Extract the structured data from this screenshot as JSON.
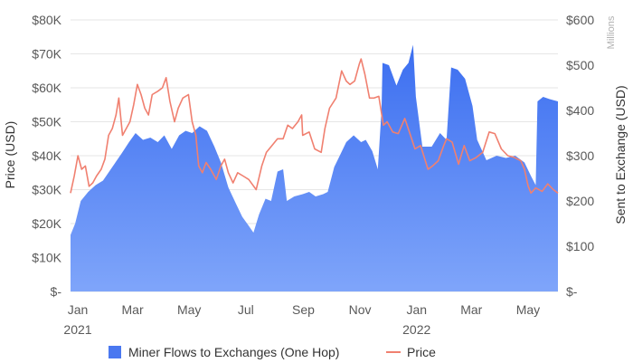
{
  "chart_data": {
    "type": "area",
    "title": "",
    "left_axis": {
      "label": "Price (USD)",
      "ticks": [
        "$-",
        "$10K",
        "$20K",
        "$30K",
        "$40K",
        "$50K",
        "$60K",
        "$70K",
        "$80K"
      ],
      "ylim": [
        0,
        80000
      ]
    },
    "right_axis": {
      "label": "Sent to Exchange (USD)",
      "unit": "Millions",
      "ticks": [
        "$-",
        "$100",
        "$200",
        "$300",
        "$400",
        "$500",
        "$600"
      ],
      "ylim": [
        0,
        600
      ]
    },
    "x_axis": {
      "ticks": [
        "Jan",
        "Mar",
        "May",
        "Jul",
        "Sep",
        "Nov",
        "Jan",
        "Mar",
        "May"
      ],
      "year_labels": [
        "2021",
        "2022"
      ],
      "range": [
        "2021-01-01",
        "2022-06-10"
      ]
    },
    "grid": true,
    "legend": {
      "position": "bottom"
    },
    "colors": {
      "area_top": "#3b6ef0",
      "area_bottom": "#7fa5fa",
      "price_line": "#f08070",
      "legend_area": "#4a78f0"
    },
    "series": [
      {
        "name": "Miner Flows to Exchanges (One Hop)",
        "axis": "right",
        "points": [
          [
            "2021-01-01",
            125
          ],
          [
            "2021-01-06",
            150
          ],
          [
            "2021-01-12",
            200
          ],
          [
            "2021-01-20",
            220
          ],
          [
            "2021-01-28",
            235
          ],
          [
            "2021-02-05",
            245
          ],
          [
            "2021-02-15",
            275
          ],
          [
            "2021-02-25",
            305
          ],
          [
            "2021-03-05",
            330
          ],
          [
            "2021-03-12",
            350
          ],
          [
            "2021-03-20",
            335
          ],
          [
            "2021-03-28",
            340
          ],
          [
            "2021-04-05",
            330
          ],
          [
            "2021-04-12",
            345
          ],
          [
            "2021-04-20",
            315
          ],
          [
            "2021-04-28",
            345
          ],
          [
            "2021-05-05",
            355
          ],
          [
            "2021-05-12",
            350
          ],
          [
            "2021-05-20",
            365
          ],
          [
            "2021-05-28",
            355
          ],
          [
            "2021-06-05",
            320
          ],
          [
            "2021-06-12",
            285
          ],
          [
            "2021-06-20",
            230
          ],
          [
            "2021-06-28",
            195
          ],
          [
            "2021-07-05",
            165
          ],
          [
            "2021-07-12",
            145
          ],
          [
            "2021-07-17",
            130
          ],
          [
            "2021-07-23",
            170
          ],
          [
            "2021-07-30",
            205
          ],
          [
            "2021-08-05",
            200
          ],
          [
            "2021-08-12",
            265
          ],
          [
            "2021-08-18",
            270
          ],
          [
            "2021-08-22",
            200
          ],
          [
            "2021-08-30",
            210
          ],
          [
            "2021-09-08",
            215
          ],
          [
            "2021-09-15",
            220
          ],
          [
            "2021-09-22",
            210
          ],
          [
            "2021-09-30",
            215
          ],
          [
            "2021-10-05",
            220
          ],
          [
            "2021-10-12",
            275
          ],
          [
            "2021-10-18",
            300
          ],
          [
            "2021-10-25",
            330
          ],
          [
            "2021-11-02",
            345
          ],
          [
            "2021-11-10",
            330
          ],
          [
            "2021-11-15",
            335
          ],
          [
            "2021-11-22",
            310
          ],
          [
            "2021-11-28",
            270
          ],
          [
            "2021-12-02",
            400
          ],
          [
            "2021-12-03",
            505
          ],
          [
            "2021-12-10",
            500
          ],
          [
            "2021-12-18",
            455
          ],
          [
            "2021-12-25",
            490
          ],
          [
            "2021-12-31",
            505
          ],
          [
            "2022-01-05",
            545
          ],
          [
            "2022-01-08",
            430
          ],
          [
            "2022-01-15",
            320
          ],
          [
            "2022-01-25",
            320
          ],
          [
            "2022-02-03",
            350
          ],
          [
            "2022-02-10",
            335
          ],
          [
            "2022-02-15",
            495
          ],
          [
            "2022-02-22",
            490
          ],
          [
            "2022-03-02",
            470
          ],
          [
            "2022-03-10",
            410
          ],
          [
            "2022-03-15",
            335
          ],
          [
            "2022-03-25",
            290
          ],
          [
            "2022-04-05",
            300
          ],
          [
            "2022-04-15",
            295
          ],
          [
            "2022-04-25",
            300
          ],
          [
            "2022-05-05",
            285
          ],
          [
            "2022-05-12",
            255
          ],
          [
            "2022-05-17",
            235
          ],
          [
            "2022-05-19",
            420
          ],
          [
            "2022-05-25",
            430
          ],
          [
            "2022-06-01",
            425
          ],
          [
            "2022-06-10",
            420
          ]
        ]
      },
      {
        "name": "Price",
        "axis": "left",
        "points": [
          [
            "2021-01-01",
            29000
          ],
          [
            "2021-01-05",
            34000
          ],
          [
            "2021-01-09",
            40000
          ],
          [
            "2021-01-13",
            36000
          ],
          [
            "2021-01-17",
            37000
          ],
          [
            "2021-01-21",
            31000
          ],
          [
            "2021-01-25",
            32000
          ],
          [
            "2021-01-29",
            34000
          ],
          [
            "2021-02-03",
            36000
          ],
          [
            "2021-02-07",
            39000
          ],
          [
            "2021-02-11",
            46000
          ],
          [
            "2021-02-15",
            48000
          ],
          [
            "2021-02-19",
            52000
          ],
          [
            "2021-02-22",
            57000
          ],
          [
            "2021-02-26",
            46000
          ],
          [
            "2021-03-02",
            48000
          ],
          [
            "2021-03-06",
            50000
          ],
          [
            "2021-03-10",
            55000
          ],
          [
            "2021-03-14",
            61000
          ],
          [
            "2021-03-18",
            58000
          ],
          [
            "2021-03-22",
            54000
          ],
          [
            "2021-03-26",
            52000
          ],
          [
            "2021-03-30",
            58000
          ],
          [
            "2021-04-05",
            59000
          ],
          [
            "2021-04-10",
            60000
          ],
          [
            "2021-04-14",
            63000
          ],
          [
            "2021-04-18",
            56000
          ],
          [
            "2021-04-23",
            50000
          ],
          [
            "2021-04-27",
            54000
          ],
          [
            "2021-05-02",
            57000
          ],
          [
            "2021-05-08",
            58000
          ],
          [
            "2021-05-12",
            50000
          ],
          [
            "2021-05-16",
            46000
          ],
          [
            "2021-05-19",
            37000
          ],
          [
            "2021-05-23",
            35000
          ],
          [
            "2021-05-27",
            38000
          ],
          [
            "2021-06-01",
            36000
          ],
          [
            "2021-06-07",
            33000
          ],
          [
            "2021-06-12",
            37000
          ],
          [
            "2021-06-16",
            39000
          ],
          [
            "2021-06-20",
            35000
          ],
          [
            "2021-06-25",
            32000
          ],
          [
            "2021-06-30",
            35000
          ],
          [
            "2021-07-06",
            34000
          ],
          [
            "2021-07-12",
            33000
          ],
          [
            "2021-07-20",
            30000
          ],
          [
            "2021-07-26",
            37000
          ],
          [
            "2021-07-31",
            41000
          ],
          [
            "2021-08-06",
            43000
          ],
          [
            "2021-08-12",
            45000
          ],
          [
            "2021-08-18",
            45000
          ],
          [
            "2021-08-23",
            49000
          ],
          [
            "2021-08-28",
            48000
          ],
          [
            "2021-09-03",
            50000
          ],
          [
            "2021-09-07",
            52000
          ],
          [
            "2021-09-08",
            46000
          ],
          [
            "2021-09-15",
            47000
          ],
          [
            "2021-09-21",
            42000
          ],
          [
            "2021-09-28",
            41000
          ],
          [
            "2021-10-02",
            48000
          ],
          [
            "2021-10-07",
            54000
          ],
          [
            "2021-10-14",
            57000
          ],
          [
            "2021-10-20",
            65000
          ],
          [
            "2021-10-25",
            62000
          ],
          [
            "2021-10-29",
            61000
          ],
          [
            "2021-11-03",
            62000
          ],
          [
            "2021-11-08",
            67000
          ],
          [
            "2021-11-10",
            68500
          ],
          [
            "2021-11-14",
            64000
          ],
          [
            "2021-11-19",
            57000
          ],
          [
            "2021-11-24",
            57000
          ],
          [
            "2021-11-29",
            57500
          ],
          [
            "2021-12-04",
            49000
          ],
          [
            "2021-12-08",
            50000
          ],
          [
            "2021-12-14",
            47000
          ],
          [
            "2021-12-20",
            46500
          ],
          [
            "2021-12-27",
            51000
          ],
          [
            "2022-01-01",
            47000
          ],
          [
            "2022-01-07",
            42000
          ],
          [
            "2022-01-13",
            43000
          ],
          [
            "2022-01-21",
            36000
          ],
          [
            "2022-01-26",
            37000
          ],
          [
            "2022-02-01",
            38500
          ],
          [
            "2022-02-07",
            43000
          ],
          [
            "2022-02-10",
            45000
          ],
          [
            "2022-02-16",
            44000
          ],
          [
            "2022-02-23",
            37500
          ],
          [
            "2022-03-01",
            43000
          ],
          [
            "2022-03-07",
            38500
          ],
          [
            "2022-03-14",
            39500
          ],
          [
            "2022-03-21",
            41000
          ],
          [
            "2022-03-28",
            47000
          ],
          [
            "2022-04-03",
            46500
          ],
          [
            "2022-04-10",
            42000
          ],
          [
            "2022-04-17",
            40000
          ],
          [
            "2022-04-24",
            39500
          ],
          [
            "2022-05-01",
            38500
          ],
          [
            "2022-05-05",
            36000
          ],
          [
            "2022-05-09",
            31000
          ],
          [
            "2022-05-12",
            29000
          ],
          [
            "2022-05-17",
            30500
          ],
          [
            "2022-05-24",
            29500
          ],
          [
            "2022-05-30",
            31700
          ],
          [
            "2022-06-05",
            30000
          ],
          [
            "2022-06-10",
            29000
          ]
        ]
      }
    ]
  }
}
